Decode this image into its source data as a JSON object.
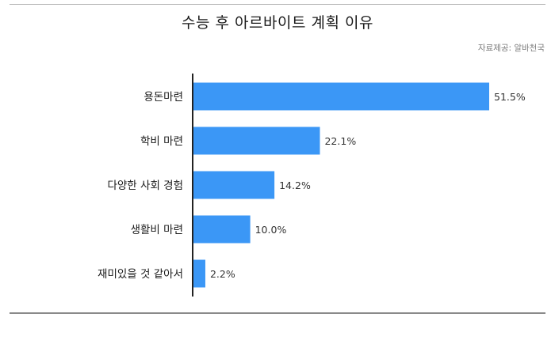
{
  "title": "수능 후 아르바이트 계획 이유",
  "source": "자료제공: 알바천국",
  "colors": {
    "bar": "#3b97f6",
    "axis": "#222222",
    "text": "#1a1a1a"
  },
  "chart_data": {
    "type": "bar",
    "orientation": "horizontal",
    "title": "수능 후 아르바이트 계획 이유",
    "categories": [
      "용돈마련",
      "학비 마련",
      "다양한 사회 경험",
      "생활비 마련",
      "재미있을 것 같아서"
    ],
    "values": [
      51.5,
      22.1,
      14.2,
      10.0,
      2.2
    ],
    "value_labels": [
      "51.5%",
      "22.1%",
      "14.2%",
      "10.0%",
      "2.2%"
    ],
    "unit": "%",
    "xlim": [
      0,
      51.5
    ],
    "grid": false,
    "legend": "none"
  }
}
